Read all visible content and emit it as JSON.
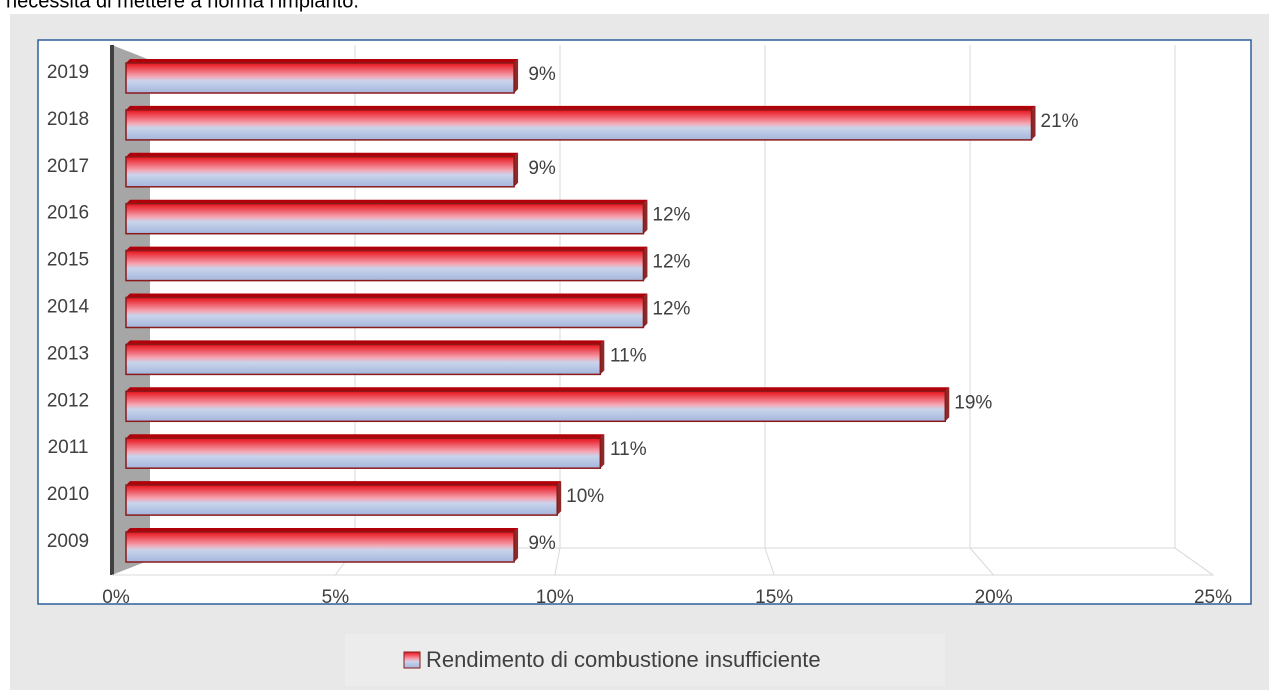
{
  "context_text": "necessità di mettere a norma l'impianto.",
  "chart_data": {
    "type": "bar3d_horizontal",
    "categories": [
      "2019",
      "2018",
      "2017",
      "2016",
      "2015",
      "2014",
      "2013",
      "2012",
      "2011",
      "2010",
      "2009"
    ],
    "series": [
      {
        "name": "Rendimento di combustione insufficiente",
        "color": "#e8121b",
        "values": [
          9,
          21,
          9,
          12,
          12,
          12,
          11,
          19,
          11,
          10,
          9
        ],
        "value_labels": [
          "9%",
          "21%",
          "9%",
          "12%",
          "12%",
          "12%",
          "11%",
          "19%",
          "11%",
          "10%",
          "9%"
        ]
      }
    ],
    "xlim": [
      0,
      25
    ],
    "xticks": [
      {
        "value": 0,
        "label": "0%"
      },
      {
        "value": 5,
        "label": "5%"
      },
      {
        "value": 10,
        "label": "10%"
      },
      {
        "value": 15,
        "label": "15%"
      },
      {
        "value": 20,
        "label": "20%"
      },
      {
        "value": 25,
        "label": "25%"
      }
    ],
    "grid": true,
    "legend": "bottom"
  }
}
